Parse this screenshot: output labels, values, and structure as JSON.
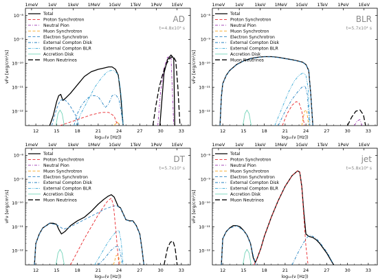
{
  "figure": {
    "legend_entries": [
      {
        "label": "Total",
        "color": "#000000",
        "style": "solid"
      },
      {
        "label": "Proton Synchrotron",
        "color": "#e8262b",
        "style": "dashed"
      },
      {
        "label": "Neutral Pion",
        "color": "#9b30b0",
        "style": "dashdot"
      },
      {
        "label": "Muon Synchrotron",
        "color": "#f3a21c",
        "style": "dashed"
      },
      {
        "label": "Electron Synchrotron",
        "color": "#2f86c5",
        "style": "dashed"
      },
      {
        "label": "External Compton Disk",
        "color": "#1f7fbf",
        "style": "dashdot"
      },
      {
        "label": "External Compton BLR",
        "color": "#35a8d6",
        "style": "dashdotdot"
      },
      {
        "label": "Accretion Disk",
        "color": "#72d3b8",
        "style": "solid"
      },
      {
        "label": "Muon Neutrinos",
        "color": "#000000",
        "style": "longdash"
      }
    ],
    "top_axis_ticks": [
      "1meV",
      "1eV",
      "1keV",
      "1MeV",
      "1GeV",
      "1TeV",
      "1PeV",
      "1EeV"
    ],
    "top_axis_tick_x": [
      -3,
      0,
      3,
      6,
      9,
      12,
      15,
      18
    ],
    "bottom_ticks": [
      "12",
      "15",
      "18",
      "21",
      "24",
      "27",
      "30",
      "33"
    ],
    "bottom_tick_x": [
      12,
      15,
      18,
      21,
      24,
      27,
      30,
      33
    ],
    "y_ticks": [
      "10⁻¹²",
      "10⁻¹¹",
      "10⁻¹⁰",
      "10⁻⁹",
      "10⁻⁸"
    ],
    "y_tick_vals": [
      -12,
      -11,
      -10,
      -9,
      -8
    ],
    "x_label": "log₁₀(ν [Hz])",
    "y_label": "νFν [erg/cm²/s]"
  },
  "chart_data": [
    {
      "type": "line",
      "title": "AD",
      "time_label": "t=4.8x10³ s",
      "xlim": [
        10.5,
        34.3
      ],
      "ylim": [
        -12.6,
        -7.7
      ],
      "xscale": "log10(ν/Hz)",
      "yscale": "log",
      "series": [
        {
          "name": "Total",
          "x": [
            14.0,
            14.5,
            15.0,
            15.3,
            15.6,
            15.9,
            16.3,
            17.0,
            18.0,
            19.0,
            20.0,
            21.0,
            21.8,
            22.5,
            23.0,
            23.5,
            23.9,
            24.2,
            24.4,
            24.6
          ],
          "y": [
            -12.6,
            -12.2,
            -11.6,
            -11.35,
            -11.3,
            -11.55,
            -11.45,
            -11.25,
            -10.9,
            -10.55,
            -10.35,
            -10.25,
            -10.2,
            -10.15,
            -10.15,
            -10.25,
            -10.5,
            -11.2,
            -11.9,
            -12.6
          ]
        },
        {
          "name": "Electron Synchrotron",
          "x": [
            14.3,
            15.0,
            15.5,
            16.0,
            16.5,
            17.0,
            17.8,
            18.2
          ],
          "y": [
            -12.6,
            -11.9,
            -11.55,
            -11.5,
            -11.6,
            -11.8,
            -12.2,
            -12.6
          ]
        },
        {
          "name": "External Compton Disk",
          "x": [
            17.5,
            18.0,
            18.5,
            19.0,
            19.5,
            20.0,
            20.5,
            21.0,
            21.5,
            22.0,
            22.5,
            23.0,
            23.5,
            24.0,
            24.3,
            24.6
          ],
          "y": [
            -12.6,
            -12.1,
            -11.8,
            -11.6,
            -11.45,
            -11.35,
            -11.35,
            -11.4,
            -11.6,
            -11.85,
            -11.7,
            -11.35,
            -11.3,
            -11.5,
            -12.0,
            -12.6
          ]
        },
        {
          "name": "External Compton BLR",
          "x": [
            17.8,
            18.5,
            19.5,
            20.5,
            21.5,
            22.3,
            22.8,
            23.3,
            23.8,
            24.1,
            24.4,
            24.6
          ],
          "y": [
            -12.6,
            -12.1,
            -11.55,
            -11.0,
            -10.6,
            -10.35,
            -10.3,
            -10.3,
            -10.45,
            -10.8,
            -11.6,
            -12.6
          ]
        },
        {
          "name": "Accretion Disk",
          "x": [
            14.9,
            15.2,
            15.5,
            15.8,
            16.1
          ],
          "y": [
            -12.6,
            -12.1,
            -11.95,
            -12.1,
            -12.6
          ]
        },
        {
          "name": "Proton Synchrotron",
          "x": [
            15.5,
            17.0,
            18.5,
            20.0,
            21.5,
            22.5,
            23.3,
            23.8
          ],
          "y": [
            -12.6,
            -12.45,
            -12.3,
            -12.15,
            -12.05,
            -12.05,
            -12.2,
            -12.6
          ]
        },
        {
          "name": "Muon Synchrotron",
          "x": [
            23.3,
            23.7,
            23.9,
            24.1
          ],
          "y": [
            -12.6,
            -12.45,
            -12.5,
            -12.6
          ]
        },
        {
          "name": "Neutral Pion",
          "x": [
            29.6,
            30.0,
            30.5,
            31.0,
            31.5,
            31.9
          ],
          "y": [
            -12.6,
            -11.2,
            -10.2,
            -9.75,
            -9.7,
            -12.6
          ]
        },
        {
          "name": "Muon Neutrinos",
          "x": [
            28.9,
            29.3,
            29.8,
            30.3,
            30.8,
            31.3,
            31.8,
            32.2,
            32.5,
            32.8
          ],
          "y": [
            -12.6,
            -11.8,
            -11.0,
            -10.45,
            -10.05,
            -9.8,
            -9.7,
            -9.9,
            -11.0,
            -12.6
          ]
        },
        {
          "name": "Total (high energy)",
          "x": [
            29.9,
            30.5,
            31.0,
            31.5,
            31.9,
            32.05
          ],
          "y": [
            -12.6,
            -10.4,
            -9.85,
            -9.65,
            -9.8,
            -12.6
          ]
        }
      ]
    },
    {
      "type": "line",
      "title": "BLR",
      "time_label": "t=5.7x10⁴ s",
      "xlim": [
        10.5,
        34.3
      ],
      "ylim": [
        -12.6,
        -7.7
      ],
      "xscale": "log10(ν/Hz)",
      "yscale": "log",
      "series": [
        {
          "name": "Total",
          "x": [
            11.6,
            11.8,
            12.0,
            12.5,
            13.0,
            14.0,
            15.0,
            16.0,
            17.0,
            18.0,
            19.0,
            20.0,
            21.0,
            22.0,
            22.8,
            23.5,
            24.0,
            24.4,
            24.7,
            25.0
          ],
          "y": [
            -12.6,
            -11.4,
            -10.85,
            -10.5,
            -10.3,
            -10.05,
            -9.9,
            -9.8,
            -9.75,
            -9.72,
            -9.72,
            -9.75,
            -9.8,
            -9.85,
            -9.9,
            -9.95,
            -10.05,
            -10.3,
            -11.3,
            -12.6
          ]
        },
        {
          "name": "Electron Synchrotron",
          "x": [
            11.6,
            11.8,
            12.0,
            12.5,
            13.0,
            14.0,
            15.0,
            16.0,
            17.0,
            18.0,
            19.0,
            20.0,
            21.0,
            22.0,
            22.8,
            23.5,
            24.0,
            24.4,
            24.7,
            25.0
          ],
          "y": [
            -12.6,
            -11.4,
            -10.86,
            -10.51,
            -10.31,
            -10.06,
            -9.91,
            -9.81,
            -9.76,
            -9.73,
            -9.73,
            -9.76,
            -9.81,
            -9.86,
            -9.91,
            -9.96,
            -10.06,
            -10.31,
            -11.31,
            -12.6
          ]
        },
        {
          "name": "External Compton BLR",
          "x": [
            19.5,
            20.5,
            21.5,
            22.3,
            23.0,
            23.6,
            24.0,
            24.3,
            24.6
          ],
          "y": [
            -12.6,
            -11.9,
            -11.2,
            -10.75,
            -10.5,
            -10.4,
            -10.5,
            -11.0,
            -12.6
          ]
        },
        {
          "name": "External Compton Disk",
          "x": [
            20.0,
            21.0,
            22.0,
            22.8,
            23.4,
            23.9,
            24.2,
            24.5
          ],
          "y": [
            -12.6,
            -12.0,
            -11.5,
            -11.2,
            -11.0,
            -10.95,
            -11.3,
            -12.6
          ]
        },
        {
          "name": "Proton Synchrotron",
          "x": [
            20.6,
            21.3,
            22.0,
            22.6,
            23.0,
            23.4,
            23.8
          ],
          "y": [
            -12.6,
            -12.1,
            -11.75,
            -11.6,
            -11.65,
            -12.0,
            -12.6
          ]
        },
        {
          "name": "Muon Synchrotron",
          "x": [
            23.4,
            23.8,
            24.1,
            24.4
          ],
          "y": [
            -12.6,
            -12.0,
            -11.95,
            -12.6
          ]
        },
        {
          "name": "Accretion Disk",
          "x": [
            14.9,
            15.2,
            15.5,
            15.8,
            16.1
          ],
          "y": [
            -12.6,
            -12.1,
            -11.95,
            -12.1,
            -12.6
          ]
        },
        {
          "name": "Muon Neutrinos",
          "x": [
            30.0,
            30.6,
            31.2,
            31.8,
            32.3,
            32.6
          ],
          "y": [
            -12.6,
            -12.25,
            -12.0,
            -11.95,
            -12.15,
            -12.6
          ]
        },
        {
          "name": "Neutral Pion",
          "x": [
            31.0,
            31.4,
            31.8,
            32.1
          ],
          "y": [
            -12.6,
            -12.4,
            -12.35,
            -12.6
          ]
        }
      ]
    },
    {
      "type": "line",
      "title": "DT",
      "time_label": "t=5.7x10⁵ s",
      "xlim": [
        10.5,
        34.3
      ],
      "ylim": [
        -12.6,
        -7.7
      ],
      "xscale": "log10(ν/Hz)",
      "yscale": "log",
      "series": [
        {
          "name": "Total",
          "x": [
            11.8,
            12.0,
            12.5,
            13.0,
            13.5,
            14.0,
            14.5,
            15.0,
            15.3,
            15.7,
            16.2,
            17.0,
            18.0,
            19.0,
            20.0,
            21.0,
            21.8,
            22.4,
            22.9,
            23.3,
            23.6,
            23.9,
            24.2,
            24.6,
            25.0,
            25.5,
            26.0,
            26.5,
            27.0,
            27.3,
            27.6
          ],
          "y": [
            -12.6,
            -11.7,
            -11.3,
            -11.05,
            -10.95,
            -10.85,
            -10.85,
            -10.9,
            -11.1,
            -11.3,
            -11.2,
            -10.95,
            -10.75,
            -10.6,
            -10.35,
            -10.05,
            -9.85,
            -9.72,
            -9.65,
            -9.75,
            -9.95,
            -10.15,
            -10.2,
            -10.45,
            -10.7,
            -10.75,
            -10.75,
            -10.95,
            -11.3,
            -11.9,
            -12.6
          ]
        },
        {
          "name": "Electron Synchrotron",
          "x": [
            11.8,
            12.0,
            12.5,
            13.0,
            14.0,
            15.0,
            16.0,
            17.0,
            18.0,
            19.0,
            20.0,
            21.0,
            22.0,
            23.0,
            23.6,
            24.2,
            25.0,
            25.5,
            26.0,
            26.5,
            27.0,
            27.3,
            27.6
          ],
          "y": [
            -12.6,
            -11.7,
            -11.31,
            -11.06,
            -10.86,
            -10.91,
            -11.1,
            -11.0,
            -10.85,
            -10.7,
            -10.55,
            -10.4,
            -10.25,
            -10.15,
            -10.1,
            -10.22,
            -10.71,
            -10.76,
            -10.76,
            -10.96,
            -11.31,
            -11.91,
            -12.6
          ]
        },
        {
          "name": "Proton Synchrotron",
          "x": [
            17.0,
            18.0,
            19.0,
            20.0,
            21.0,
            21.8,
            22.4,
            22.9,
            23.2,
            23.5,
            23.8,
            24.0
          ],
          "y": [
            -12.6,
            -12.05,
            -11.5,
            -11.0,
            -10.5,
            -10.15,
            -9.9,
            -9.8,
            -10.1,
            -11.0,
            -12.0,
            -12.6
          ]
        },
        {
          "name": "External Compton BLR",
          "x": [
            20.5,
            21.5,
            22.3,
            23.0,
            23.6,
            24.0,
            24.3,
            24.6
          ],
          "y": [
            -12.6,
            -12.1,
            -11.7,
            -11.4,
            -11.2,
            -11.15,
            -11.6,
            -12.6
          ]
        },
        {
          "name": "External Compton Disk",
          "x": [
            21.0,
            22.0,
            22.8,
            23.4,
            23.9,
            24.2,
            24.5
          ],
          "y": [
            -12.6,
            -12.3,
            -12.0,
            -11.85,
            -11.8,
            -12.1,
            -12.6
          ]
        },
        {
          "name": "Muon Synchrotron",
          "x": [
            23.2,
            23.6,
            23.9,
            24.2
          ],
          "y": [
            -12.6,
            -12.2,
            -12.2,
            -12.6
          ]
        },
        {
          "name": "Accretion Disk",
          "x": [
            14.9,
            15.2,
            15.5,
            15.8,
            16.1
          ],
          "y": [
            -12.6,
            -12.1,
            -11.95,
            -12.1,
            -12.6
          ]
        },
        {
          "name": "Muon Neutrinos",
          "x": [
            30.5,
            31.0,
            31.4,
            31.8,
            32.1,
            32.4
          ],
          "y": [
            -12.6,
            -11.9,
            -11.65,
            -11.6,
            -11.9,
            -12.6
          ]
        }
      ]
    },
    {
      "type": "line",
      "title": "jet",
      "time_label": "t=5.8x10⁶ s",
      "xlim": [
        10.5,
        34.3
      ],
      "ylim": [
        -12.6,
        -7.7
      ],
      "xscale": "log10(ν/Hz)",
      "yscale": "log",
      "series": [
        {
          "name": "Total",
          "x": [
            11.8,
            12.0,
            12.5,
            13.0,
            13.5,
            14.0,
            14.5,
            15.0,
            15.5,
            16.0,
            16.4,
            16.7,
            17.0,
            17.5,
            18.0,
            19.0,
            20.0,
            21.0,
            22.0,
            22.8,
            23.1,
            23.4,
            23.7,
            24.0,
            24.4,
            25.0,
            25.5,
            26.0,
            26.5,
            27.0,
            27.5,
            28.0
          ],
          "y": [
            -12.6,
            -11.5,
            -11.2,
            -11.05,
            -10.95,
            -10.95,
            -11.0,
            -11.15,
            -11.35,
            -11.7,
            -12.3,
            -12.5,
            -12.3,
            -11.9,
            -11.4,
            -10.6,
            -9.9,
            -9.3,
            -8.85,
            -8.65,
            -8.7,
            -9.3,
            -10.4,
            -11.3,
            -11.4,
            -11.45,
            -11.55,
            -11.7,
            -11.9,
            -12.1,
            -12.35,
            -12.6
          ]
        },
        {
          "name": "Electron Synchrotron",
          "x": [
            11.8,
            12.0,
            12.5,
            13.0,
            14.0,
            15.0,
            15.5,
            16.0,
            16.4,
            16.8
          ],
          "y": [
            -12.6,
            -11.5,
            -11.21,
            -11.06,
            -10.96,
            -11.16,
            -11.36,
            -11.72,
            -12.2,
            -12.6
          ]
        },
        {
          "name": "Proton Synchrotron",
          "x": [
            16.5,
            17.0,
            17.5,
            18.0,
            19.0,
            20.0,
            21.0,
            22.0,
            22.8,
            23.1,
            23.4,
            23.7,
            24.0,
            24.3
          ],
          "y": [
            -12.6,
            -12.3,
            -11.9,
            -11.4,
            -10.6,
            -9.9,
            -9.3,
            -8.85,
            -8.65,
            -8.7,
            -9.35,
            -10.6,
            -11.8,
            -12.6
          ]
        },
        {
          "name": "External Compton Disk",
          "x": [
            22.0,
            23.0,
            24.0,
            24.5,
            25.0,
            25.5,
            26.0,
            26.5,
            27.0,
            27.5,
            28.0
          ],
          "y": [
            -12.6,
            -12.0,
            -11.5,
            -11.35,
            -11.4,
            -11.5,
            -11.65,
            -11.85,
            -12.05,
            -12.3,
            -12.6
          ]
        },
        {
          "name": "Accretion Disk",
          "x": [
            14.9,
            15.2,
            15.5,
            15.8,
            16.1
          ],
          "y": [
            -12.6,
            -12.1,
            -11.95,
            -12.1,
            -12.6
          ]
        }
      ]
    }
  ]
}
